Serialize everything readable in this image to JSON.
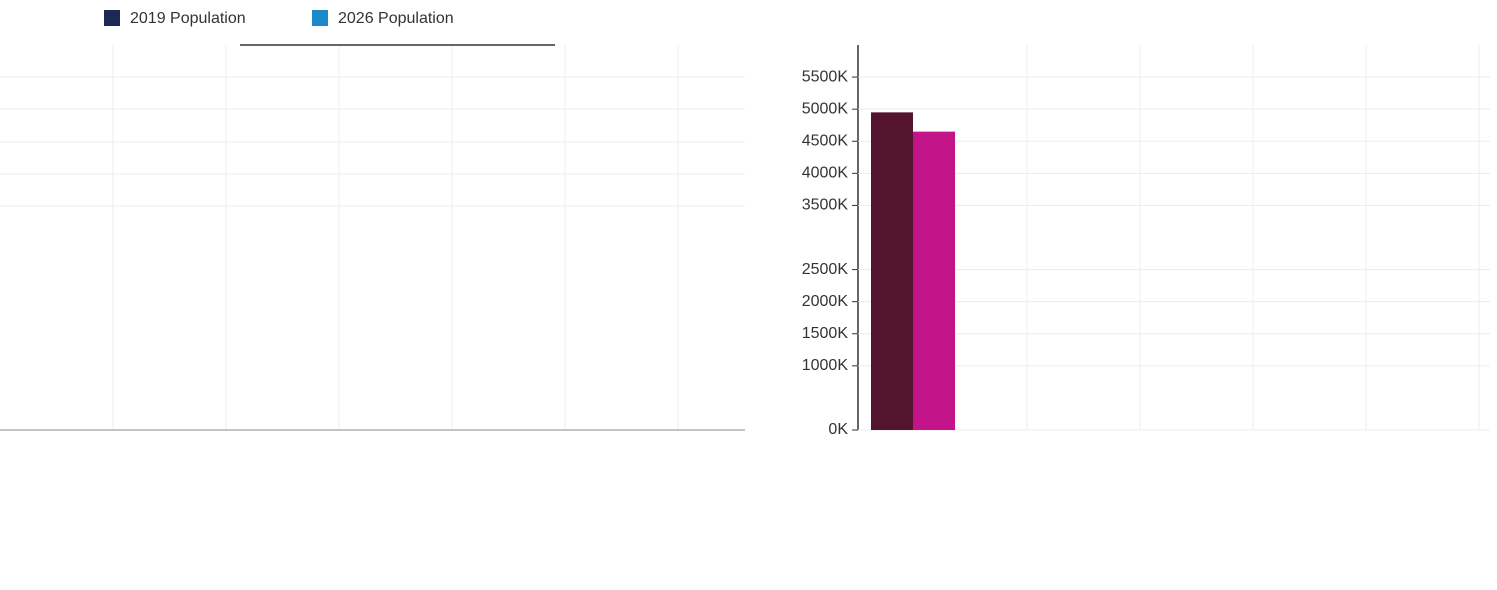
{
  "chart_data": {
    "type": "bar",
    "categories": [
      null
    ],
    "series": [
      {
        "name": "2019 Population",
        "color": "#1b2a55",
        "colors": [
          "#55142e"
        ],
        "values": [
          4950000
        ]
      },
      {
        "name": "2026 Population",
        "color": "#1b88c8",
        "colors": [
          "#c4148a"
        ],
        "values": [
          4650000
        ]
      }
    ],
    "ylim": [
      0,
      6000000
    ],
    "yticks": [
      {
        "value": 0,
        "label": "0K"
      },
      {
        "value": 1000000,
        "label": "1000K"
      },
      {
        "value": 1500000,
        "label": "1500K"
      },
      {
        "value": 2000000,
        "label": "2000K"
      },
      {
        "value": 2500000,
        "label": "2500K"
      },
      {
        "value": 3500000,
        "label": "3500K"
      },
      {
        "value": 4000000,
        "label": "4000K"
      },
      {
        "value": 4500000,
        "label": "4500K"
      },
      {
        "value": 5000000,
        "label": "5000K"
      },
      {
        "value": 5500000,
        "label": "5500K"
      }
    ],
    "grid": true
  }
}
